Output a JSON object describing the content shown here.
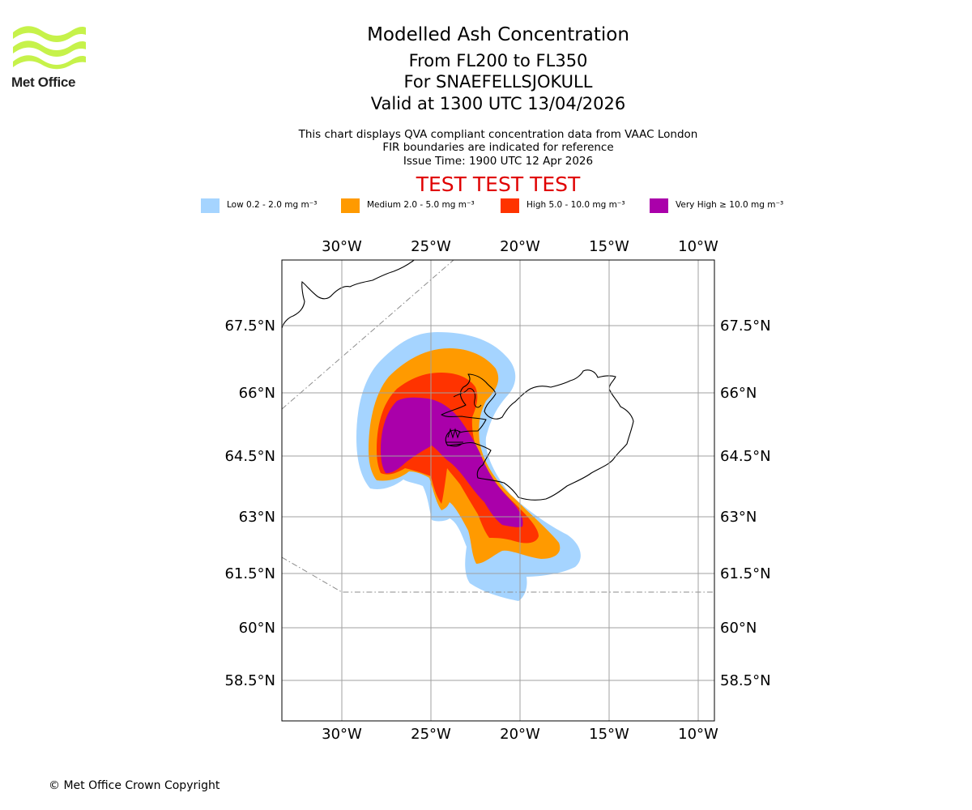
{
  "branding": {
    "org_name": "Met Office",
    "logo_color": "#c6f24a"
  },
  "header": {
    "title": "Modelled Ash Concentration",
    "levels": "From FL200 to FL350",
    "volcano": "For SNAEFELLSJOKULL",
    "valid": "Valid at 1300 UTC 13/04/2026",
    "description": "This chart displays QVA compliant concentration data from VAAC London",
    "fir_note": "FIR boundaries are indicated for reference",
    "issue_time": "Issue Time: 1900 UTC 12 Apr 2026",
    "test_banner": "TEST TEST TEST"
  },
  "legend": [
    {
      "label": "Low 0.2 - 2.0 mg m⁻³",
      "color": "#a5d4ff"
    },
    {
      "label": "Medium 2.0 - 5.0 mg m⁻³",
      "color": "#ff9a00"
    },
    {
      "label": "High 5.0 - 10.0 mg m⁻³",
      "color": "#ff3300"
    },
    {
      "label": "Very High ≥ 10.0 mg m⁻³",
      "color": "#aa00aa"
    }
  ],
  "map": {
    "lon_ticks": [
      {
        "value": -30,
        "label": "30°W"
      },
      {
        "value": -25,
        "label": "25°W"
      },
      {
        "value": -20,
        "label": "20°W"
      },
      {
        "value": -15,
        "label": "15°W"
      },
      {
        "value": -10,
        "label": "10°W"
      }
    ],
    "lat_ticks": [
      {
        "value": 67.5,
        "label": "67.5°N"
      },
      {
        "value": 66,
        "label": "66°N"
      },
      {
        "value": 64.5,
        "label": "64.5°N"
      },
      {
        "value": 63,
        "label": "63°N"
      },
      {
        "value": 61.5,
        "label": "61.5°N"
      },
      {
        "value": 60,
        "label": "60°N"
      },
      {
        "value": 58.5,
        "label": "58.5°N"
      }
    ],
    "gridline_color": "#a0a0a0",
    "fir_color": "#8c8c8c"
  },
  "footer": {
    "copyright": "© Met Office Crown Copyright"
  }
}
